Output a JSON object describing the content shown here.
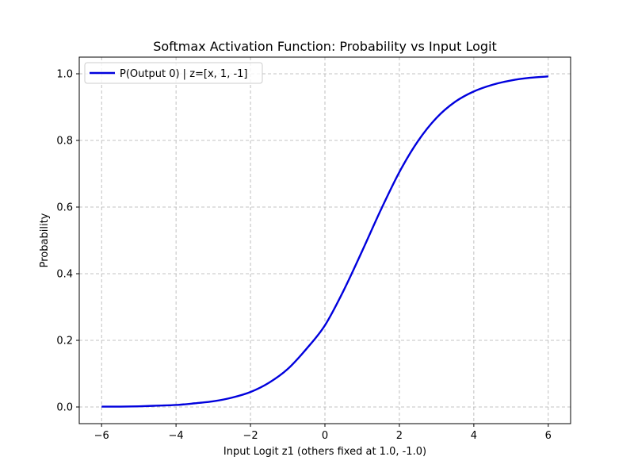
{
  "chart_data": {
    "type": "line",
    "title": "Softmax Activation Function: Probability vs Input Logit",
    "xlabel": "Input Logit z1 (others fixed at 1.0, -1.0)",
    "ylabel": "Probability",
    "xlim": [
      -6.6,
      6.6
    ],
    "ylim": [
      -0.05,
      1.05
    ],
    "xticks": [
      -6,
      -4,
      -2,
      0,
      2,
      4,
      6
    ],
    "xtick_labels": [
      "−6",
      "−4",
      "−2",
      "0",
      "2",
      "4",
      "6"
    ],
    "yticks": [
      0.0,
      0.2,
      0.4,
      0.6,
      0.8,
      1.0
    ],
    "ytick_labels": [
      "0.0",
      "0.2",
      "0.4",
      "0.6",
      "0.8",
      "1.0"
    ],
    "grid": true,
    "legend_position": "top-left",
    "series": [
      {
        "name": "P(Output 0) | z=[x, 1, -1]",
        "color": "#0000dd",
        "x": [
          -6.0,
          -5.5,
          -5.0,
          -4.5,
          -4.0,
          -3.5,
          -3.0,
          -2.5,
          -2.0,
          -1.5,
          -1.0,
          -0.5,
          0.0,
          0.5,
          1.0,
          1.5,
          2.0,
          2.5,
          3.0,
          3.5,
          4.0,
          4.5,
          5.0,
          5.5,
          6.0
        ],
        "y": [
          0.001,
          0.001,
          0.002,
          0.004,
          0.006,
          0.011,
          0.017,
          0.028,
          0.045,
          0.073,
          0.114,
          0.174,
          0.245,
          0.349,
          0.468,
          0.591,
          0.705,
          0.798,
          0.868,
          0.916,
          0.947,
          0.967,
          0.98,
          0.988,
          0.992
        ]
      }
    ]
  }
}
